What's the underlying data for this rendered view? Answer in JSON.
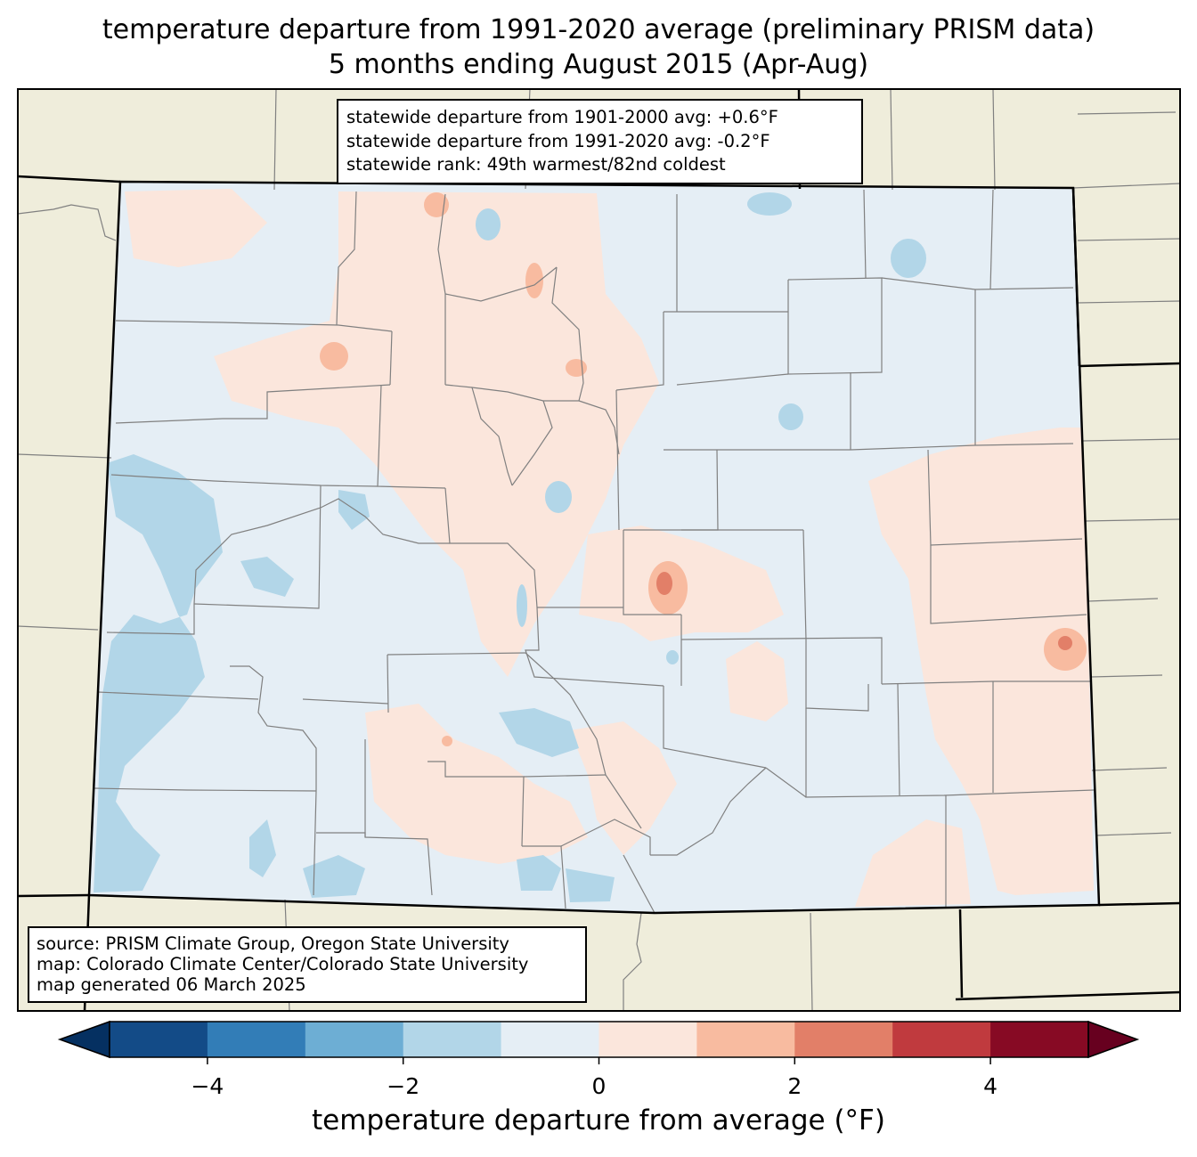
{
  "title_line1": "temperature departure from 1991-2020 average (preliminary PRISM data)",
  "title_line2": "5 months ending August 2015 (Apr-Aug)",
  "stats": {
    "departure_1901_2000": "statewide departure from 1901-2000 avg: +0.6°F",
    "departure_1991_2020": "statewide departure from 1991-2020 avg: -0.2°F",
    "rank": "statewide rank: 49th warmest/82nd coldest"
  },
  "source": {
    "line1": "source: PRISM Climate Group, Oregon State University",
    "line2": "map: Colorado Climate Center/Colorado State University",
    "line3": "map generated 06 March 2025"
  },
  "colorbar": {
    "label": "temperature departure from average (°F)",
    "ticks": [
      "−4",
      "−2",
      "0",
      "2",
      "4"
    ],
    "tick_values": [
      -4,
      -2,
      0,
      2,
      4
    ],
    "range": [
      -5,
      5
    ],
    "bin_width": 1,
    "colors": [
      "#053061",
      "#134b87",
      "#327db7",
      "#6daed4",
      "#b2d6e8",
      "#e5eef5",
      "#fbe6dc",
      "#f8bba0",
      "#e27f68",
      "#c03a3e",
      "#870a24",
      "#67001f"
    ]
  },
  "map_colors": {
    "land": "#efeddb",
    "cool": "#e5eef5",
    "warm": "#fbe6dc",
    "cold_patch": "#b2d6e8",
    "warm_patch": "#f8bba0",
    "hot_patch": "#e27f68",
    "county_lines": "#808080",
    "state_lines": "#000000"
  }
}
